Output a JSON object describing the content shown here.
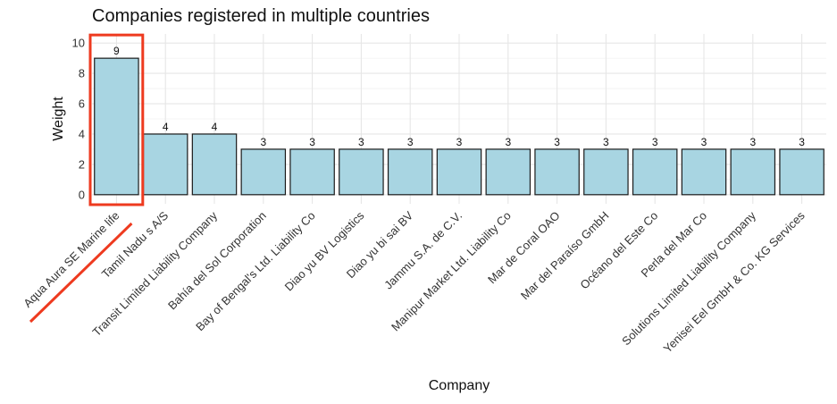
{
  "chart_data": {
    "type": "bar",
    "title": "Companies registered in multiple countries",
    "xlabel": "Company",
    "ylabel": "Weight",
    "categories": [
      "Aqua Aura SE Marine life",
      "Tamil Nadu s A/S",
      "Transit Limited Liability Company",
      "Bahía del Sol Corporation",
      "Bay of Bengal's Ltd. Liability Co",
      "Diao yu BV Logistics",
      "Diao yu bi sai BV",
      "Jammu S.A. de C.V.",
      "Manipur Market Ltd. Liability Co",
      "Mar de Coral OAO",
      "Mar del Paraíso GmbH",
      "Océano del Este Co",
      "Perla del Mar Co",
      "Solutions Limited Liability Company",
      "Yenisei Eel GmbH & Co. KG Services"
    ],
    "values": [
      9,
      4,
      4,
      3,
      3,
      3,
      3,
      3,
      3,
      3,
      3,
      3,
      3,
      3,
      3
    ],
    "data_labels": [
      "9",
      "4",
      "4",
      "3",
      "3",
      "3",
      "3",
      "3",
      "3",
      "3",
      "3",
      "3",
      "3",
      "3",
      "3"
    ],
    "yticks": [
      0,
      2,
      4,
      6,
      8,
      10
    ],
    "ytick_labels": [
      "0",
      "2",
      "4",
      "6",
      "8",
      "10"
    ],
    "ylim": [
      -0.6,
      10.6
    ],
    "grid": true,
    "highlighted_category": "Aqua Aura SE Marine life"
  },
  "colors": {
    "bar_fill": "#a8d5e2",
    "bar_outline": "#1a1a1a",
    "highlight": "#ee3a1f",
    "grid": "#e6e6e6"
  }
}
